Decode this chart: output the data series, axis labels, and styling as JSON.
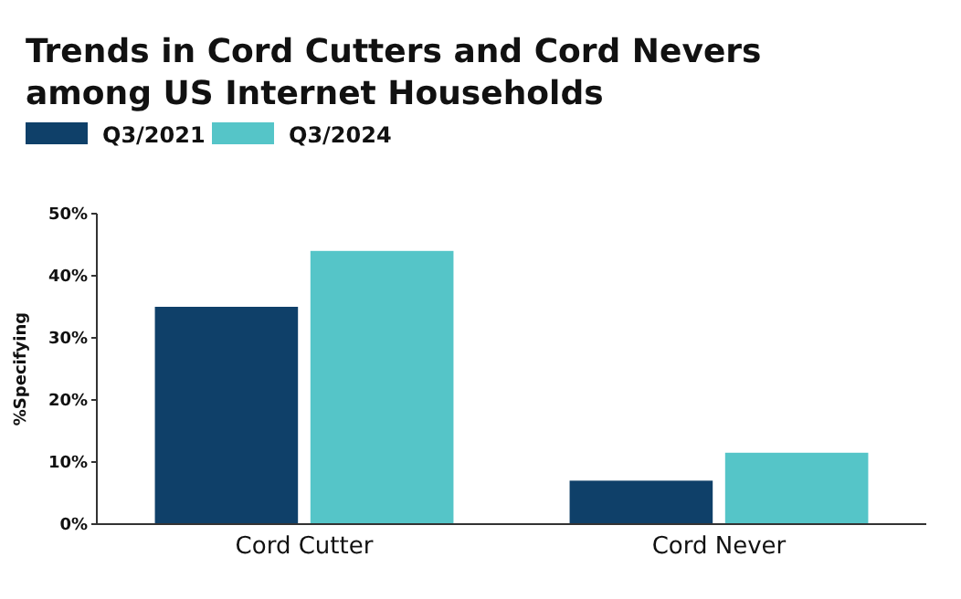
{
  "chart_data": {
    "type": "bar",
    "title": "Trends in Cord Cutters and Cord Nevers\namong US Internet Households",
    "ylabel": "%Specifying",
    "categories": [
      "Cord Cutter",
      "Cord Never"
    ],
    "series": [
      {
        "name": "Q3/2021",
        "color": "#0f4069",
        "values": [
          35,
          7
        ]
      },
      {
        "name": "Q3/2024",
        "color": "#55c5c8",
        "values": [
          44,
          11.5
        ]
      }
    ],
    "ylim": [
      0,
      50
    ],
    "yticks": [
      {
        "value": 0,
        "label": "0%"
      },
      {
        "value": 10,
        "label": "10%"
      },
      {
        "value": 20,
        "label": "20%"
      },
      {
        "value": 30,
        "label": "30%"
      },
      {
        "value": 40,
        "label": "40%"
      },
      {
        "value": 50,
        "label": "50%"
      }
    ],
    "grid": false,
    "legend": "top left"
  }
}
